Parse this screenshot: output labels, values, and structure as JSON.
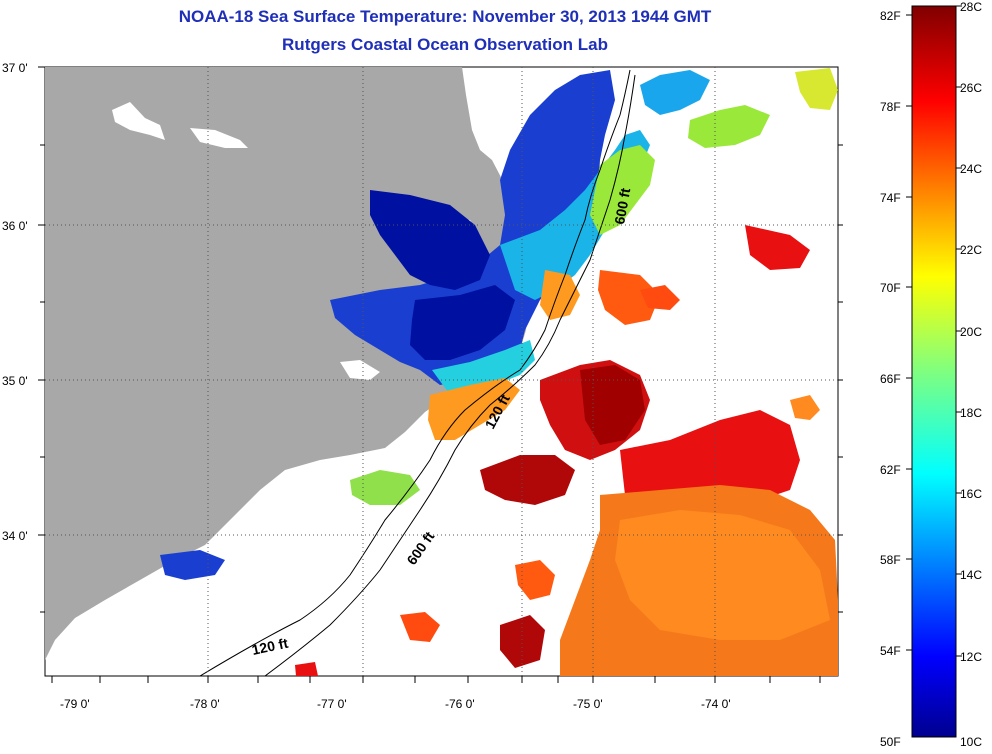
{
  "title_line1": "NOAA-18 Sea Surface Temperature:  November 30, 2013 1944 GMT",
  "title_line2": "Rutgers Coastal Ocean Observation Lab",
  "axes": {
    "lat_labels": [
      "37 0'",
      "36 0'",
      "35 0'",
      "34 0'"
    ],
    "lon_labels": [
      "-79 0'",
      "-78 0'",
      "-77 0'",
      "-76 0'",
      "-75 0'",
      "-74 0'"
    ]
  },
  "contours": {
    "label_120_a": "120 ft",
    "label_120_b": "120 ft",
    "label_600_a": "600 ft",
    "label_600_b": "600 ft"
  },
  "colorbar": {
    "fahrenheit": [
      "82F",
      "78F",
      "74F",
      "70F",
      "66F",
      "62F",
      "58F",
      "54F",
      "50F"
    ],
    "celsius": [
      "28C",
      "26C",
      "24C",
      "22C",
      "20C",
      "18C",
      "16C",
      "14C",
      "12C",
      "10C"
    ],
    "range_c": [
      10,
      28
    ]
  },
  "colors": {
    "land": "#a8a8a8",
    "title": "#1f2fb8"
  }
}
